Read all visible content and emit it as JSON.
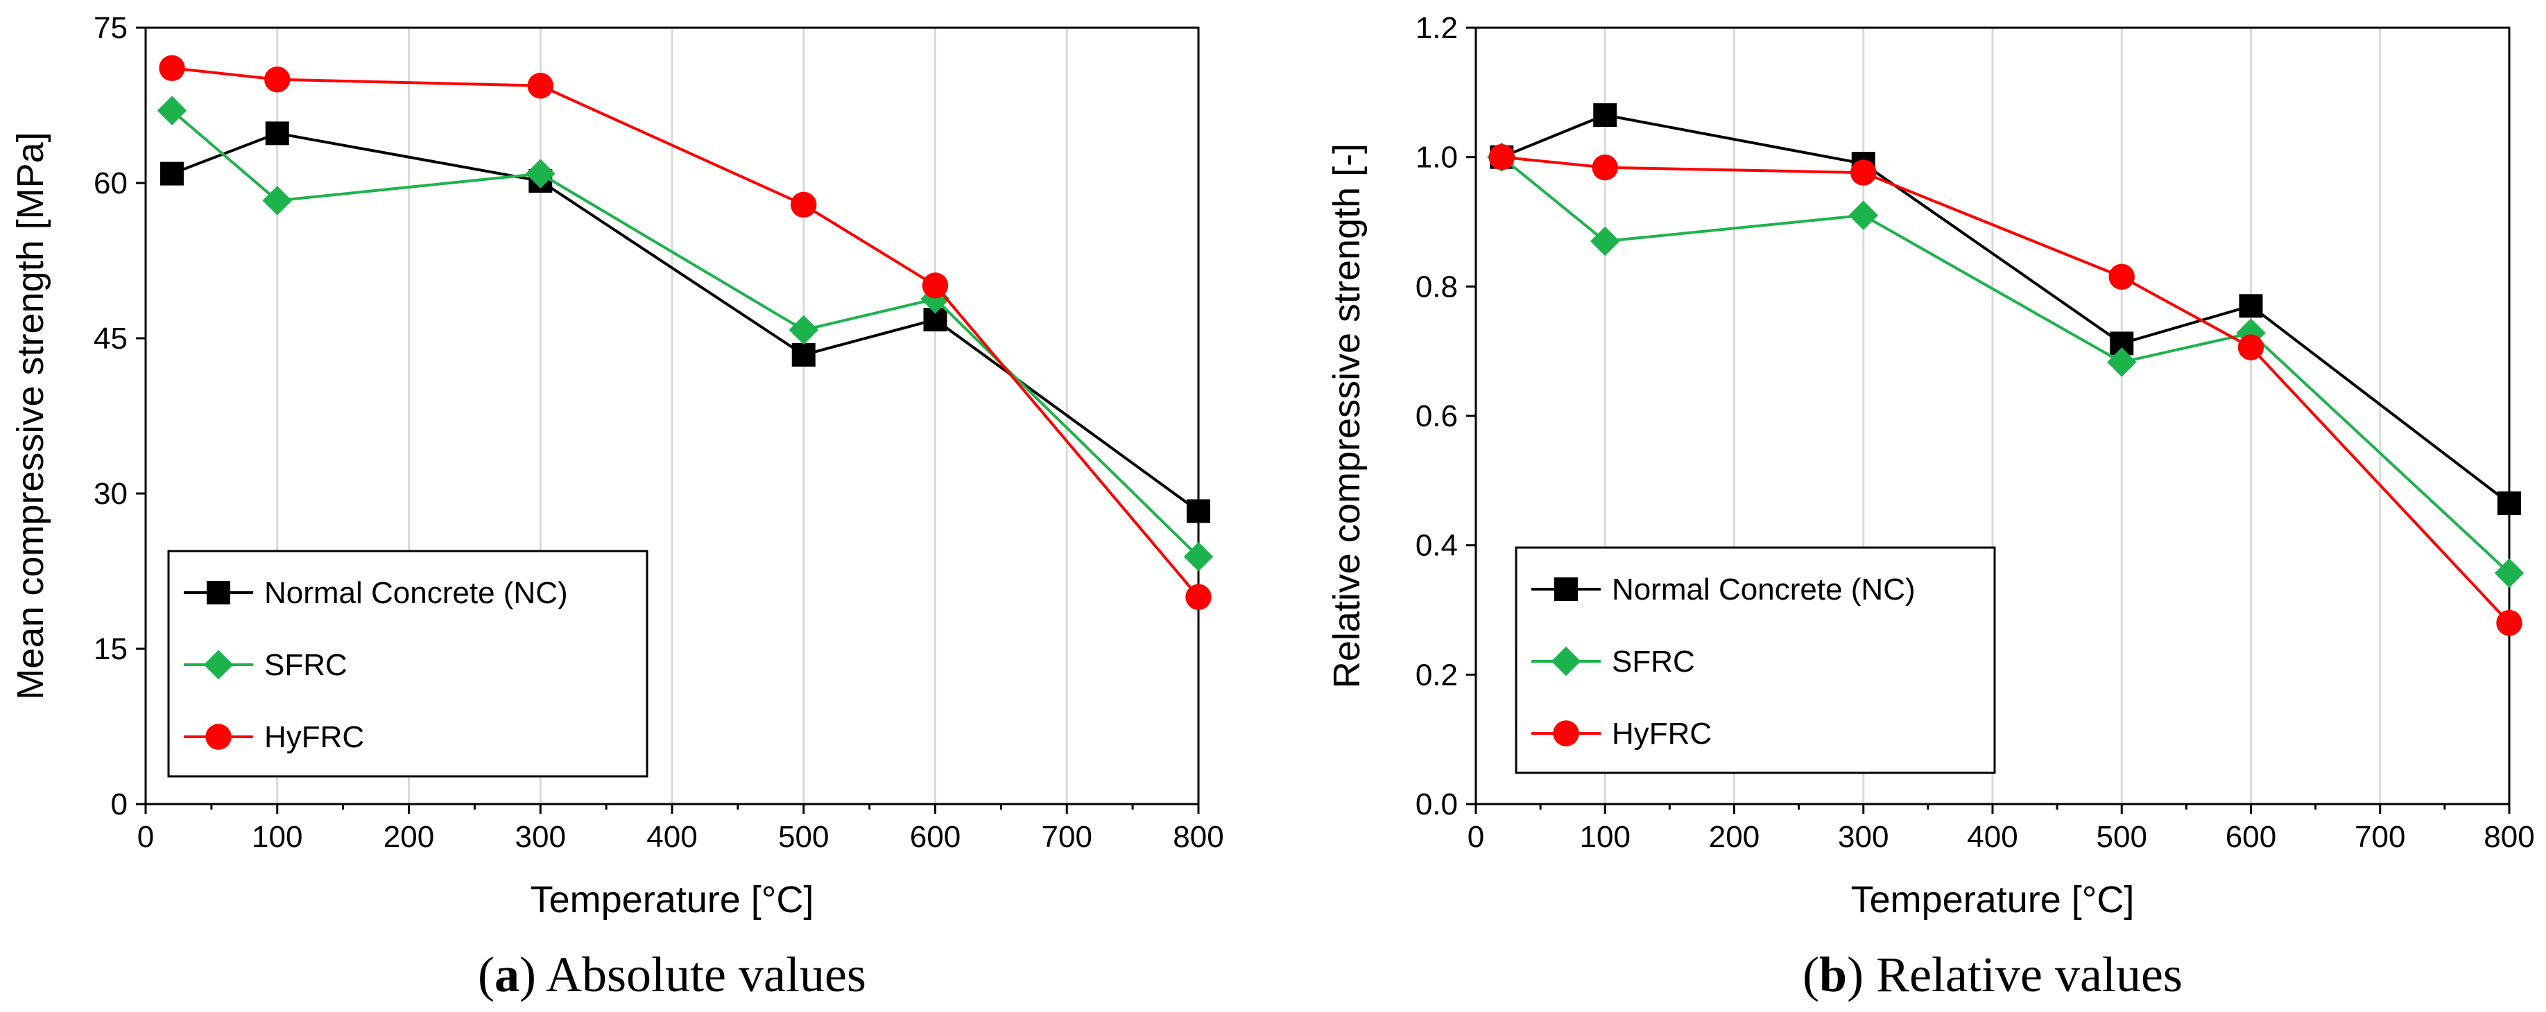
{
  "chart_data": [
    {
      "type": "line",
      "caption_letter": "a",
      "caption_text": "Absolute values",
      "xlabel": "Temperature [°C]",
      "ylabel": "Mean compressive strength [MPa]",
      "xlim": [
        0,
        800
      ],
      "ylim": [
        0,
        75
      ],
      "xticks": [
        "0",
        "100",
        "200",
        "300",
        "400",
        "500",
        "600",
        "700",
        "800"
      ],
      "yticks": [
        "0",
        "15",
        "30",
        "45",
        "60",
        "75"
      ],
      "grid": "vertical",
      "legend_position": "bottom-left",
      "series": [
        {
          "name": "Normal Concrete (NC)",
          "color": "#000000",
          "marker": "square",
          "x": [
            20,
            100,
            300,
            500,
            600,
            800
          ],
          "y": [
            60.9,
            64.8,
            60.2,
            43.4,
            46.8,
            28.3
          ]
        },
        {
          "name": "SFRC",
          "color": "#1db34c",
          "marker": "diamond",
          "x": [
            20,
            100,
            300,
            500,
            600,
            800
          ],
          "y": [
            67.0,
            58.3,
            60.9,
            45.8,
            48.8,
            23.9
          ]
        },
        {
          "name": "HyFRC",
          "color": "#ff0000",
          "marker": "circle",
          "x": [
            20,
            100,
            300,
            500,
            600,
            800
          ],
          "y": [
            71.1,
            70.0,
            69.4,
            57.9,
            50.1,
            20.0
          ]
        }
      ]
    },
    {
      "type": "line",
      "caption_letter": "b",
      "caption_text": "Relative values",
      "xlabel": "Temperature [°C]",
      "ylabel": "Relative compressive strength [-]",
      "xlim": [
        0,
        800
      ],
      "ylim": [
        0,
        1.2
      ],
      "xticks": [
        "0",
        "100",
        "200",
        "300",
        "400",
        "500",
        "600",
        "700",
        "800"
      ],
      "yticks": [
        "0.0",
        "0.2",
        "0.4",
        "0.6",
        "0.8",
        "1.0",
        "1.2"
      ],
      "grid": "vertical",
      "legend_position": "bottom-left",
      "series": [
        {
          "name": "Normal Concrete (NC)",
          "color": "#000000",
          "marker": "square",
          "x": [
            20,
            100,
            300,
            500,
            600,
            800
          ],
          "y": [
            1.0,
            1.065,
            0.99,
            0.712,
            0.77,
            0.465
          ]
        },
        {
          "name": "SFRC",
          "color": "#1db34c",
          "marker": "diamond",
          "x": [
            20,
            100,
            300,
            500,
            600,
            800
          ],
          "y": [
            1.0,
            0.87,
            0.91,
            0.683,
            0.728,
            0.357
          ]
        },
        {
          "name": "HyFRC",
          "color": "#ff0000",
          "marker": "circle",
          "x": [
            20,
            100,
            300,
            500,
            600,
            800
          ],
          "y": [
            1.0,
            0.984,
            0.976,
            0.815,
            0.706,
            0.28
          ]
        }
      ]
    }
  ]
}
